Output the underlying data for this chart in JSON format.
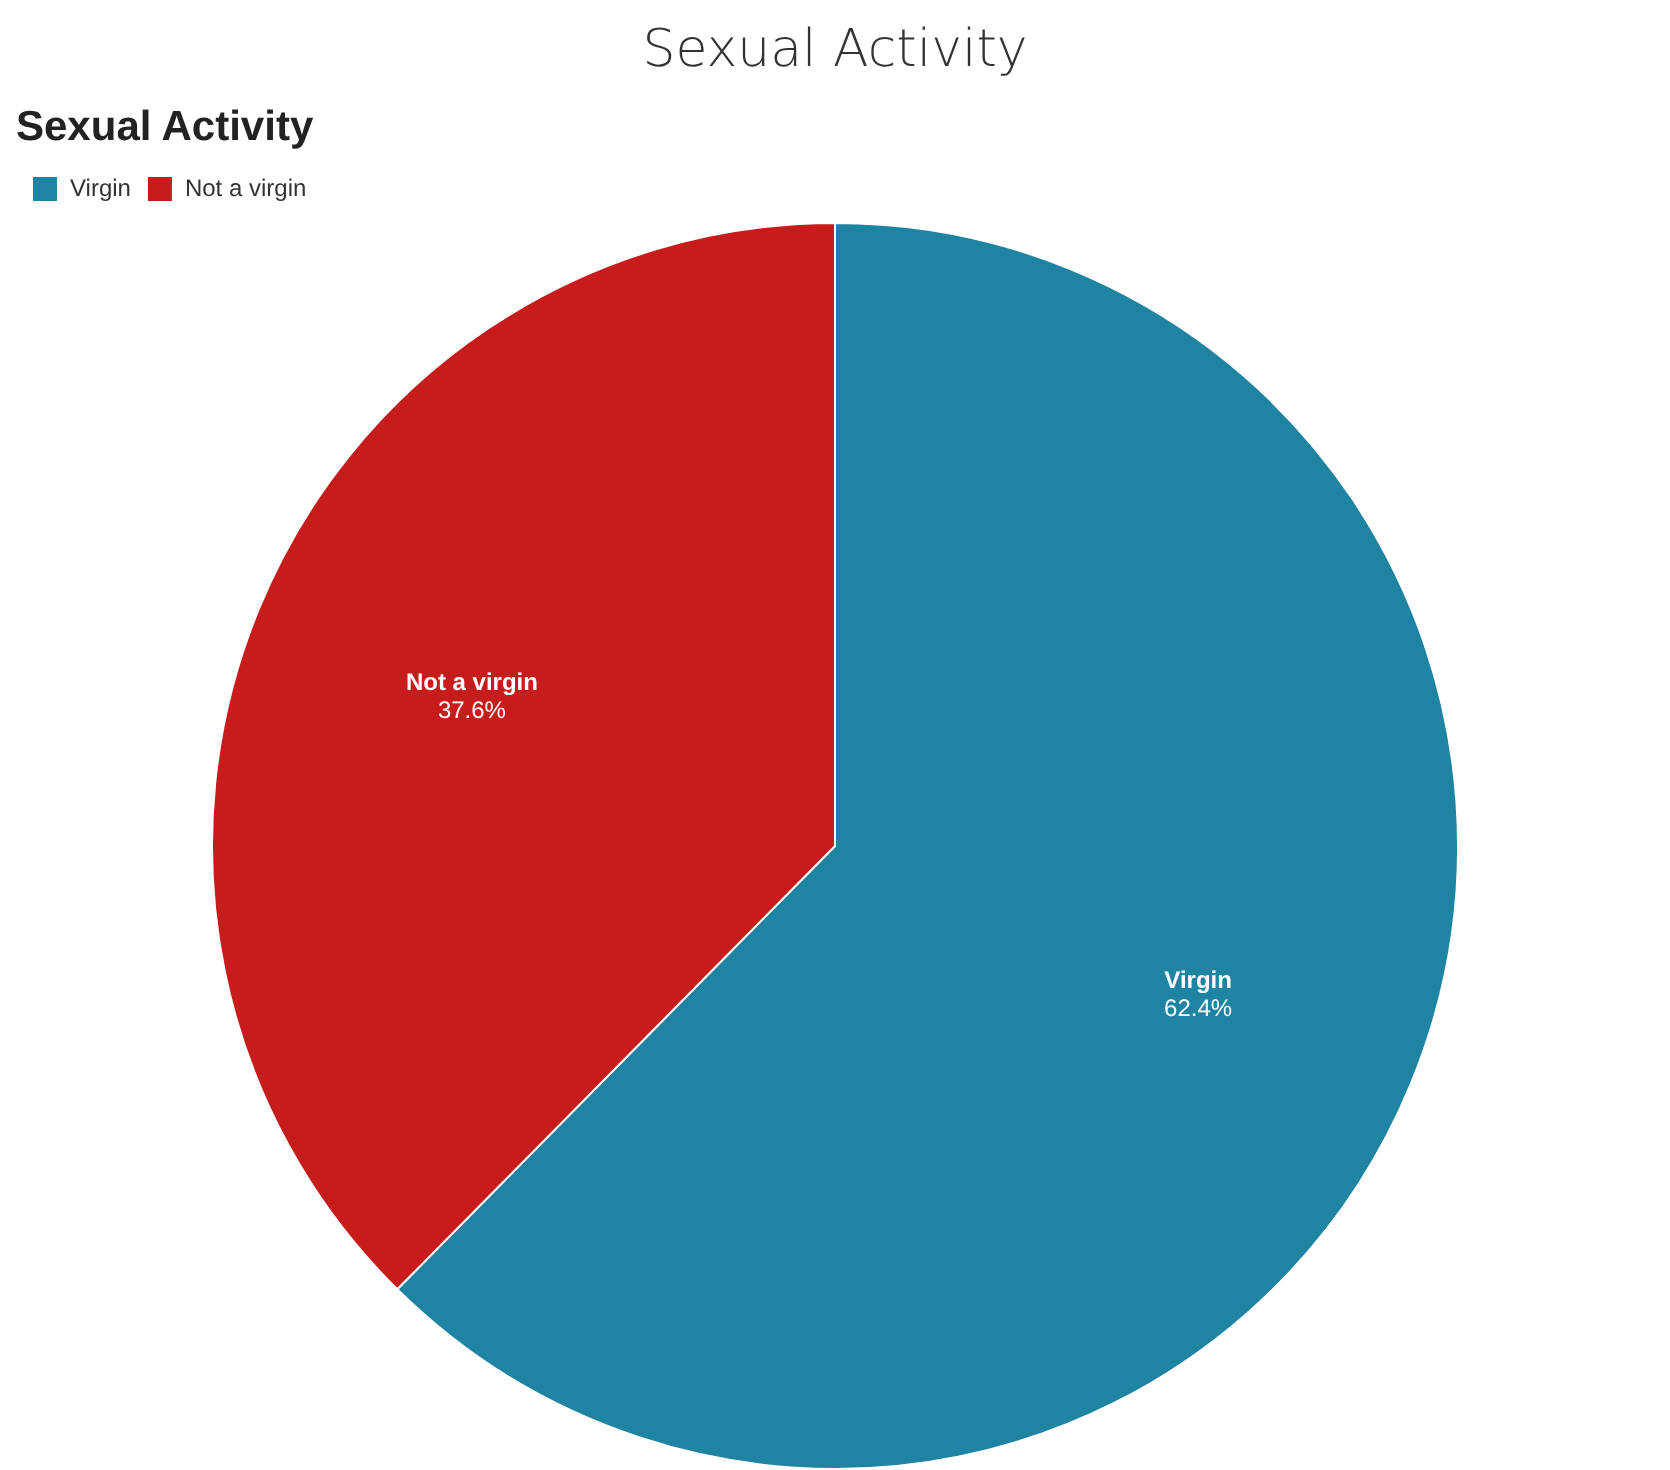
{
  "chart_data": {
    "type": "pie",
    "title": "Sexual Activity",
    "subtitle": "Sexual Activity",
    "categories": [
      "Virgin",
      "Not a virgin"
    ],
    "values": [
      62.4,
      37.6
    ],
    "colors": [
      "#1f83a2",
      "#c71c1c"
    ],
    "value_labels": [
      "62.4%",
      "37.6%"
    ],
    "legend": "top left"
  }
}
